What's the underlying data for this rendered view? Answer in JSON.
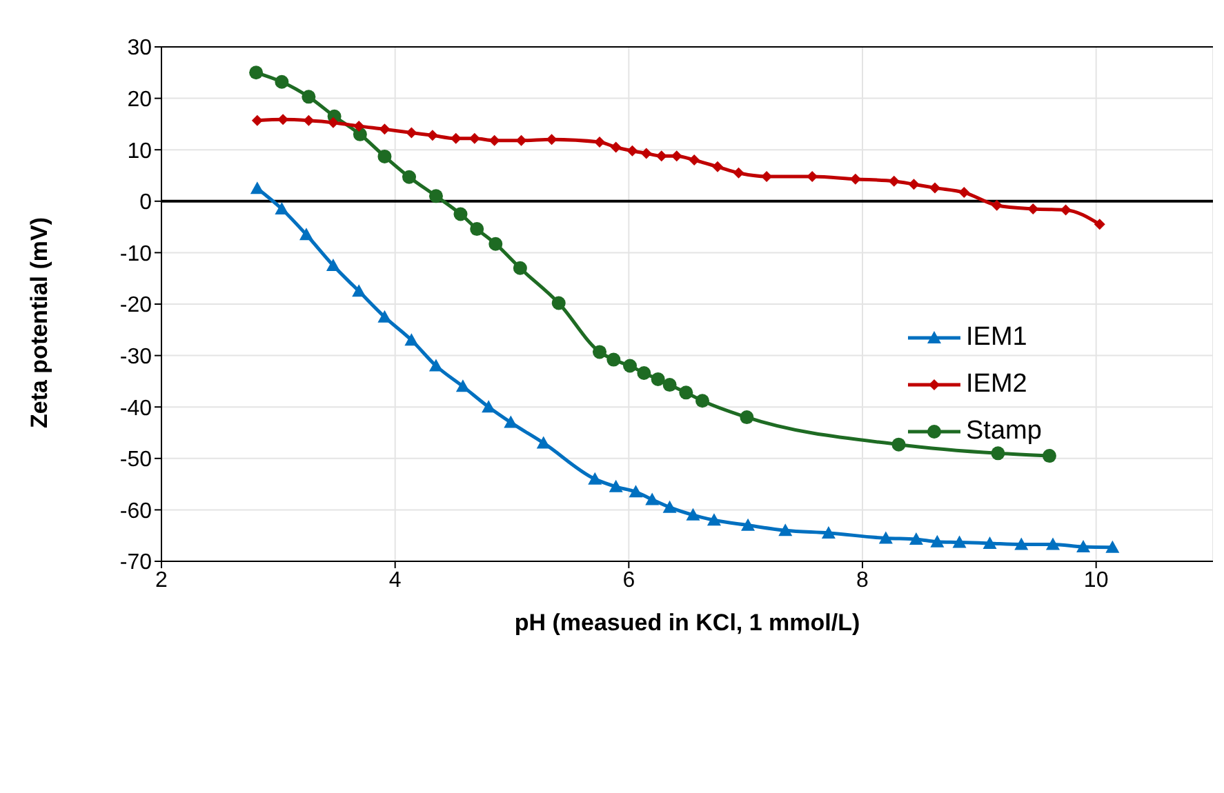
{
  "chart_data": {
    "type": "line",
    "xlabel": "pH (measued in KCl, 1 mmol/L)",
    "ylabel": "Zeta potential (mV)",
    "xlim": [
      2,
      11
    ],
    "xticks": [
      2,
      4,
      6,
      8,
      10
    ],
    "ylim": [
      -70,
      30
    ],
    "yticks": [
      -70,
      -60,
      -50,
      -40,
      -30,
      -20,
      -10,
      0,
      10,
      20,
      30
    ],
    "grid": true,
    "legend": "right",
    "line_style": "solid",
    "ref_lines": [
      {
        "axis": "y",
        "value": 0,
        "color": "#000000"
      }
    ],
    "series": [
      {
        "name": "IEM1",
        "color": "#0070c0",
        "marker": "triangle",
        "x": [
          2.82,
          3.03,
          3.24,
          3.47,
          3.69,
          3.91,
          4.14,
          4.35,
          4.58,
          4.8,
          4.99,
          5.27,
          5.71,
          5.89,
          6.06,
          6.2,
          6.35,
          6.55,
          6.73,
          7.02,
          7.34,
          7.71,
          8.2,
          8.46,
          8.64,
          8.83,
          9.09,
          9.36,
          9.63,
          9.89,
          10.14
        ],
        "values": [
          2.5,
          -1.5,
          -6.5,
          -12.5,
          -17.5,
          -22.5,
          -27,
          -32,
          -36,
          -40,
          -43,
          -47,
          -54,
          -55.5,
          -56.5,
          -58,
          -59.5,
          -61,
          -62,
          -63,
          -64,
          -64.5,
          -65.5,
          -65.7,
          -66.2,
          -66.3,
          -66.5,
          -66.7,
          -66.7,
          -67.2,
          -67.3
        ]
      },
      {
        "name": "IEM2",
        "color": "#c00000",
        "marker": "diamond",
        "x": [
          2.82,
          3.04,
          3.26,
          3.47,
          3.69,
          3.91,
          4.14,
          4.32,
          4.52,
          4.68,
          4.85,
          5.08,
          5.34,
          5.75,
          5.89,
          6.03,
          6.15,
          6.28,
          6.41,
          6.56,
          6.76,
          6.94,
          7.18,
          7.57,
          7.94,
          8.27,
          8.44,
          8.62,
          8.87,
          9.15,
          9.46,
          9.74,
          10.03
        ],
        "values": [
          15.7,
          15.9,
          15.7,
          15.3,
          14.6,
          14,
          13.3,
          12.8,
          12.2,
          12.2,
          11.8,
          11.8,
          12,
          11.5,
          10.5,
          9.8,
          9.3,
          8.8,
          8.8,
          8,
          6.7,
          5.5,
          4.8,
          4.8,
          4.3,
          3.9,
          3.3,
          2.6,
          1.7,
          -0.8,
          -1.5,
          -1.7,
          -4.5
        ]
      },
      {
        "name": "Stamp",
        "color": "#1e6b23",
        "marker": "circle",
        "x": [
          2.81,
          3.03,
          3.26,
          3.48,
          3.7,
          3.91,
          4.12,
          4.35,
          4.56,
          4.7,
          4.86,
          5.07,
          5.4,
          5.75,
          5.87,
          6.01,
          6.13,
          6.25,
          6.35,
          6.49,
          6.63,
          7.01,
          8.31,
          9.16,
          9.6
        ],
        "values": [
          25,
          23.2,
          20.3,
          16.5,
          13,
          8.7,
          4.7,
          1,
          -2.5,
          -5.4,
          -8.3,
          -13,
          -19.8,
          -29.3,
          -30.8,
          -32,
          -33.4,
          -34.6,
          -35.7,
          -37.2,
          -38.8,
          -42,
          -47.3,
          -49,
          -49.5
        ]
      }
    ]
  }
}
